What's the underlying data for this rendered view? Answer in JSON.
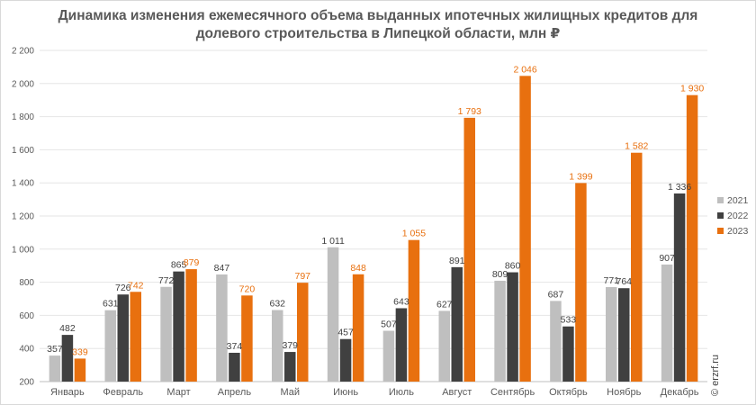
{
  "title_line1": "Динамика изменения ежемесячного объема выданных ипотечных жилищных кредитов для",
  "title_line2": "долевого строительства в Липецкой области, млн ₽",
  "watermark": "© erzrf.ru",
  "chart_data": {
    "type": "bar",
    "title": "Динамика изменения ежемесячного объема выданных ипотечных жилищных кредитов для долевого строительства в Липецкой области, млн ₽",
    "categories": [
      "Январь",
      "Февраль",
      "Март",
      "Апрель",
      "Май",
      "Июнь",
      "Июль",
      "Август",
      "Сентябрь",
      "Октябрь",
      "Ноябрь",
      "Декабрь"
    ],
    "series": [
      {
        "name": "2021",
        "color": "#bfbfbf",
        "label_color": "#404040",
        "values": [
          357,
          631,
          772,
          847,
          632,
          1011,
          507,
          627,
          809,
          687,
          771,
          907
        ],
        "labels": [
          "357",
          "631",
          "772",
          "847",
          "632",
          "1 011",
          "507",
          "627",
          "809",
          "687",
          "771",
          "907"
        ]
      },
      {
        "name": "2022",
        "color": "#404040",
        "label_color": "#404040",
        "values": [
          482,
          726,
          865,
          374,
          379,
          457,
          643,
          891,
          860,
          533,
          764,
          1336
        ],
        "labels": [
          "482",
          "726",
          "865",
          "374",
          "379",
          "457",
          "643",
          "891",
          "860",
          "533",
          "764",
          "1 336"
        ]
      },
      {
        "name": "2023",
        "color": "#e8700f",
        "label_color": "#e8700f",
        "values": [
          339,
          742,
          879,
          720,
          797,
          848,
          1055,
          1793,
          2046,
          1399,
          1582,
          1930
        ],
        "labels": [
          "339",
          "742",
          "879",
          "720",
          "797",
          "848",
          "1 055",
          "1 793",
          "2 046",
          "1 399",
          "1 582",
          "1 930"
        ]
      }
    ],
    "ylim": [
      200,
      2200
    ],
    "yticks": [
      200,
      400,
      600,
      800,
      1000,
      1200,
      1400,
      1600,
      1800,
      2000,
      2200
    ],
    "ytick_labels": [
      "200",
      "400",
      "600",
      "800",
      "1 000",
      "1 200",
      "1 400",
      "1 600",
      "1 800",
      "2 000",
      "2 200"
    ],
    "grid": true,
    "legend_position": "right"
  }
}
